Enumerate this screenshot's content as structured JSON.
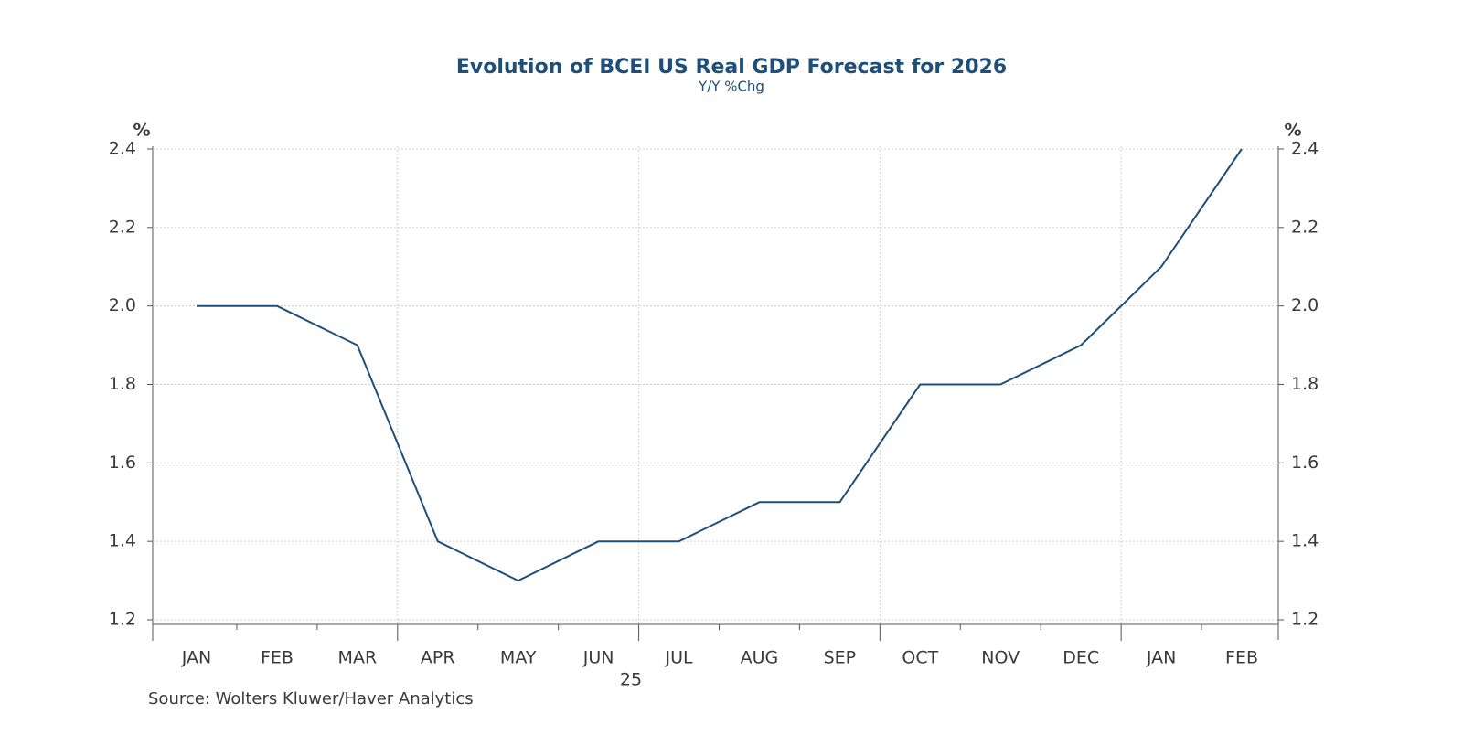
{
  "chart_data": {
    "type": "line",
    "title": "Evolution of BCEI US Real GDP Forecast for 2026",
    "subtitle": "Y/Y %Chg",
    "y_label": "%",
    "y2_label": "%",
    "categories": [
      "JAN",
      "FEB",
      "MAR",
      "APR",
      "MAY",
      "JUN",
      "JUL",
      "AUG",
      "SEP",
      "OCT",
      "NOV",
      "DEC",
      "JAN",
      "FEB"
    ],
    "year_label": "25",
    "values": [
      2.0,
      2.0,
      1.9,
      1.4,
      1.3,
      1.4,
      1.4,
      1.5,
      1.5,
      1.8,
      1.8,
      1.9,
      2.1,
      2.4
    ],
    "color": "#1f4e79",
    "ylim": [
      1.2,
      2.4
    ],
    "yticks": [
      1.2,
      1.4,
      1.6,
      1.8,
      {
        "value": 2,
        "label": "2.0"
      },
      2.2,
      2.4
    ],
    "y2lim": [
      1.2,
      2.4
    ],
    "y2ticks": [
      1.2,
      1.4,
      1.6,
      1.8,
      {
        "value": 2,
        "label": "2.0"
      },
      2.2,
      2.4
    ],
    "grid": true,
    "source": "Source:  Wolters Kluwer/Haver Analytics"
  }
}
